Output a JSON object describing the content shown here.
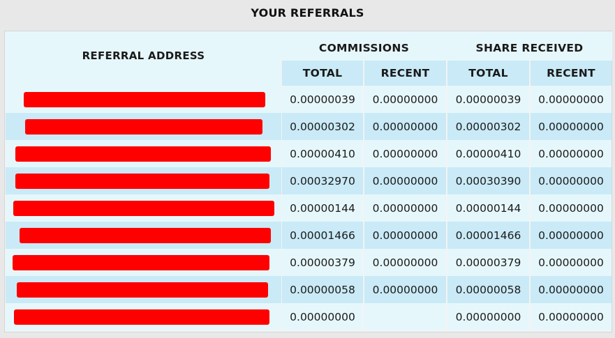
{
  "title": "YOUR REFERRALS",
  "headers": {
    "address": "REFERRAL ADDRESS",
    "commissions": "COMMISSIONS",
    "share_received": "SHARE RECEIVED",
    "total": "TOTAL",
    "recent": "RECENT"
  },
  "colors": {
    "row_light": "#e6f7fc",
    "row_dark": "#c9eaf6",
    "redaction": "#ff0000"
  },
  "rows": [
    {
      "commission_total": "0.00000039",
      "commission_recent": "0.00000000",
      "share_total": "0.00000039",
      "share_recent": "0.00000000"
    },
    {
      "commission_total": "0.00000302",
      "commission_recent": "0.00000000",
      "share_total": "0.00000302",
      "share_recent": "0.00000000"
    },
    {
      "commission_total": "0.00000410",
      "commission_recent": "0.00000000",
      "share_total": "0.00000410",
      "share_recent": "0.00000000"
    },
    {
      "commission_total": "0.00032970",
      "commission_recent": "0.00000000",
      "share_total": "0.00030390",
      "share_recent": "0.00000000"
    },
    {
      "commission_total": "0.00000144",
      "commission_recent": "0.00000000",
      "share_total": "0.00000144",
      "share_recent": "0.00000000"
    },
    {
      "commission_total": "0.00001466",
      "commission_recent": "0.00000000",
      "share_total": "0.00001466",
      "share_recent": "0.00000000"
    },
    {
      "commission_total": "0.00000379",
      "commission_recent": "0.00000000",
      "share_total": "0.00000379",
      "share_recent": "0.00000000"
    },
    {
      "commission_total": "0.00000058",
      "commission_recent": "0.00000000",
      "share_total": "0.00000058",
      "share_recent": "0.00000000"
    },
    {
      "commission_total": "0.00000000",
      "commission_recent": "",
      "share_total": "0.00000000",
      "share_recent": "0.00000000"
    }
  ]
}
